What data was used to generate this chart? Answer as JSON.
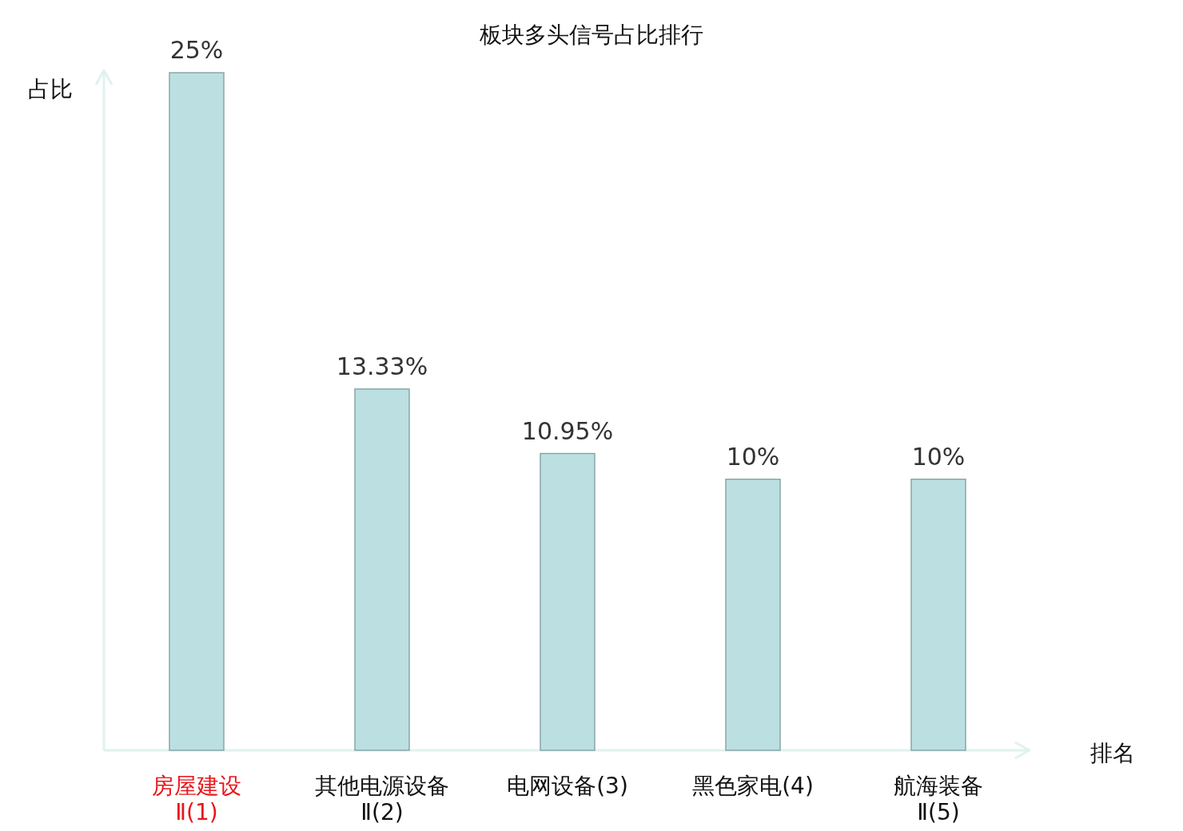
{
  "chart_data": {
    "type": "bar",
    "title": "板块多头信号占比排行",
    "xlabel": "排名",
    "ylabel": "占比",
    "categories": [
      "房屋建设Ⅱ(1)",
      "其他电源设备Ⅱ(2)",
      "电网设备(3)",
      "黑色家电(4)",
      "航海装备Ⅱ(5)"
    ],
    "values": [
      25,
      13.33,
      10.95,
      10,
      10
    ],
    "value_labels": [
      "25%",
      "13.33%",
      "10.95%",
      "10%",
      "10%"
    ],
    "color": "#bce0e2"
  }
}
